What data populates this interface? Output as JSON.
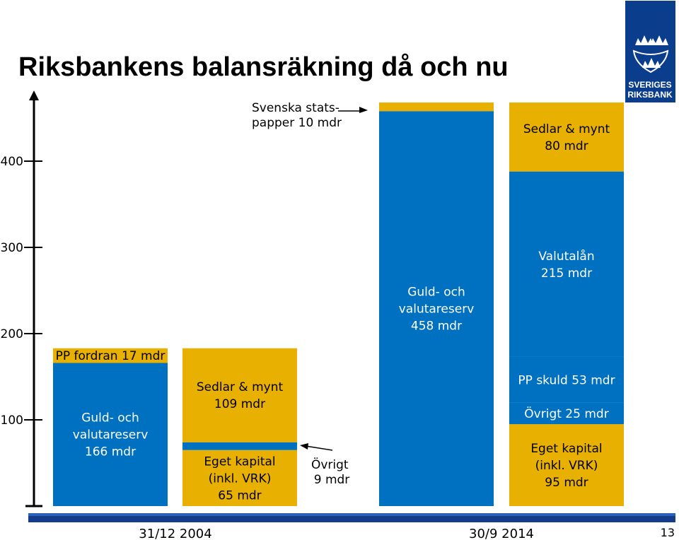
{
  "slide": {
    "title": "Riksbankens balansräkning då och nu",
    "page_number": "13",
    "logo": {
      "line1": "SVERIGES",
      "line2": "RIKSBANK"
    }
  },
  "colors": {
    "blue": "#0070c0",
    "gold": "#e8b000",
    "axis": "#000000",
    "dark_blue_band": "#123c8c"
  },
  "chart_data": {
    "type": "bar",
    "subtype": "stacked balance sheet",
    "title": "Riksbankens balansräkning då och nu",
    "yticks": [
      100,
      200,
      300,
      400
    ],
    "ylim": [
      0,
      480
    ],
    "dates": [
      "31/12 2004",
      "30/9 2014"
    ],
    "bars": [
      {
        "period": "31/12 2004",
        "side": "assets",
        "segments": [
          {
            "key": "a2004_reserve",
            "lines": [
              "Guld- och",
              "valutareserv",
              "166 mdr"
            ],
            "value": 166,
            "color": "blue"
          },
          {
            "key": "a2004_pp",
            "lines": [
              "PP fordran 17 mdr"
            ],
            "value": 17,
            "color": "gold"
          }
        ]
      },
      {
        "period": "31/12 2004",
        "side": "liabilities",
        "segments": [
          {
            "key": "l2004_equity",
            "lines": [
              "Eget kapital",
              "(inkl. VRK)",
              "65 mdr"
            ],
            "value": 65,
            "color": "gold"
          },
          {
            "key": "l2004_other",
            "lines": [],
            "value": 9,
            "color": "blue"
          },
          {
            "key": "l2004_notes",
            "lines": [
              "Sedlar & mynt",
              "109 mdr"
            ],
            "value": 109,
            "color": "gold"
          }
        ]
      },
      {
        "period": "30/9 2014",
        "side": "assets",
        "segments": [
          {
            "key": "a2014_reserve",
            "lines": [
              "Guld- och",
              "valutareserv",
              "458 mdr"
            ],
            "value": 458,
            "color": "blue"
          },
          {
            "key": "a2014_gov",
            "lines": [],
            "value": 10,
            "color": "gold"
          }
        ]
      },
      {
        "period": "30/9 2014",
        "side": "liabilities",
        "segments": [
          {
            "key": "l2014_equity",
            "lines": [
              "Eget kapital",
              "(inkl. VRK)",
              "95 mdr"
            ],
            "value": 95,
            "color": "gold"
          },
          {
            "key": "l2014_other",
            "lines": [
              "Övrigt 25 mdr"
            ],
            "value": 25,
            "color": "blue"
          },
          {
            "key": "l2014_ppdebt",
            "lines": [
              "PP skuld 53 mdr"
            ],
            "value": 53,
            "color": "blue"
          },
          {
            "key": "l2014_loans",
            "lines": [
              "Valutalån",
              "215 mdr"
            ],
            "value": 215,
            "color": "blue"
          },
          {
            "key": "l2014_notes",
            "lines": [
              "Sedlar & mynt",
              "80 mdr"
            ],
            "value": 80,
            "color": "gold"
          }
        ]
      }
    ],
    "annotations": [
      {
        "key": "ann_gov",
        "lines": [
          "Svenska stats-",
          "papper 10 mdr"
        ]
      },
      {
        "key": "ann_other",
        "lines": [
          "Övrigt",
          "9 mdr"
        ]
      }
    ]
  }
}
